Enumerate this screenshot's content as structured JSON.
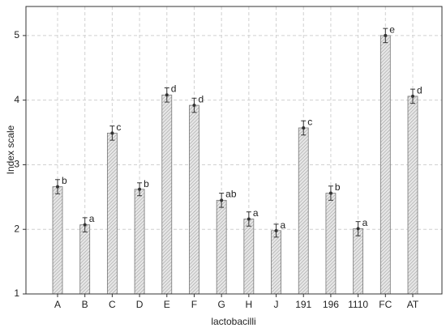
{
  "chart_data": {
    "type": "bar",
    "x_label": "lactobacilli",
    "y_label": "Index scale",
    "categories": [
      "A",
      "B",
      "C",
      "D",
      "E",
      "F",
      "G",
      "H",
      "J",
      "191",
      "196",
      "1110",
      "FC",
      "AT"
    ],
    "values": [
      2.66,
      2.07,
      3.49,
      2.62,
      4.08,
      3.92,
      2.45,
      2.16,
      1.98,
      3.57,
      2.56,
      2.01,
      5.0,
      4.06
    ],
    "errors": [
      0.11,
      0.11,
      0.11,
      0.1,
      0.11,
      0.11,
      0.11,
      0.11,
      0.1,
      0.11,
      0.11,
      0.11,
      0.11,
      0.11
    ],
    "letters": [
      "b",
      "a",
      "c",
      "b",
      "d",
      "d",
      "ab",
      "a",
      "a",
      "c",
      "b",
      "a",
      "e",
      "d"
    ],
    "color": "#d9d9d9",
    "ylim": [
      1,
      5.45
    ],
    "yticks": [
      1,
      2,
      3,
      4,
      5
    ],
    "grid": true
  }
}
